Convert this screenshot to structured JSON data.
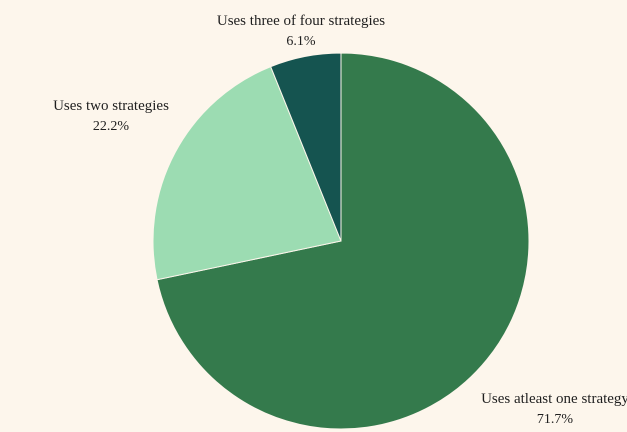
{
  "chart_data": {
    "type": "pie",
    "slices": [
      {
        "label": "Uses atleast one strategy",
        "value": 71.7,
        "value_label": "71.7%",
        "color": "#347a4c"
      },
      {
        "label": "Uses two strategies",
        "value": 22.2,
        "value_label": "22.2%",
        "color": "#9cdcb2"
      },
      {
        "label": "Uses three of four strategies",
        "value": 6.1,
        "value_label": "6.1%",
        "color": "#155450"
      }
    ],
    "title": "",
    "legend": "none",
    "background": "#fdf6ec"
  }
}
